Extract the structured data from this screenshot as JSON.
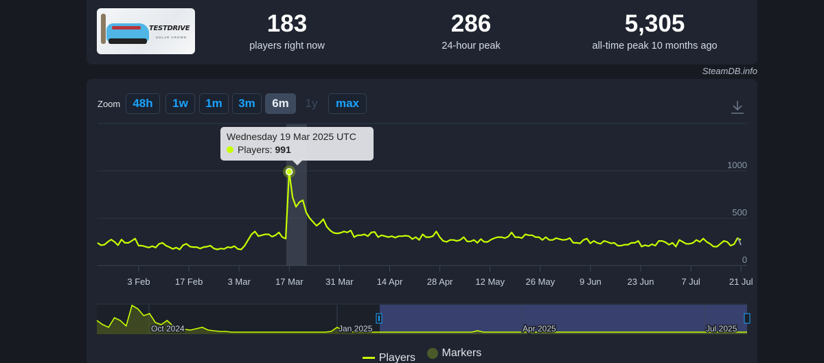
{
  "stats": {
    "logo_title": "TESTDRIVE",
    "logo_subtitle": "SOLAR CROWN",
    "current": {
      "value": "183",
      "label": "players right now"
    },
    "peak24": {
      "value": "286",
      "label": "24-hour peak"
    },
    "alltime": {
      "value": "5,305",
      "label": "all-time peak 10 months ago"
    }
  },
  "credit": "SteamDB.info",
  "zoom": {
    "label": "Zoom",
    "buttons": [
      {
        "label": "48h",
        "state": "normal"
      },
      {
        "label": "1w",
        "state": "normal"
      },
      {
        "label": "1m",
        "state": "normal"
      },
      {
        "label": "3m",
        "state": "normal"
      },
      {
        "label": "6m",
        "state": "active"
      },
      {
        "label": "1y",
        "state": "disabled"
      },
      {
        "label": "max",
        "state": "normal"
      }
    ]
  },
  "tooltip": {
    "date": "Wednesday 19 Mar 2025 UTC",
    "series": "Players: ",
    "value": "991"
  },
  "legend": {
    "players": "Players",
    "markers": "Markers"
  },
  "colors": {
    "line": "#c8ff00",
    "accent": "#1aa3ff",
    "navigator_selection": "#3a4272"
  },
  "navigator": {
    "labels": [
      "Oct 2024",
      "Jan 2025",
      "Apr 2025",
      "Jul 2025"
    ]
  },
  "chart_data": {
    "type": "line",
    "title": "",
    "xlabel": "",
    "ylabel": "Players",
    "ylim": [
      0,
      1500
    ],
    "yticks": [
      0,
      500,
      1000
    ],
    "xticks": [
      "3 Feb",
      "17 Feb",
      "3 Mar",
      "17 Mar",
      "31 Mar",
      "14 Apr",
      "28 Apr",
      "12 May",
      "26 May",
      "9 Jun",
      "23 Jun",
      "7 Jul",
      "21 Jul"
    ],
    "grid": true,
    "legend_position": "bottom",
    "series": [
      {
        "name": "Players",
        "x_start": "2025-01-22",
        "x_step_days": 1,
        "values": [
          240,
          215,
          220,
          250,
          275,
          250,
          215,
          275,
          240,
          240,
          260,
          285,
          210,
          210,
          200,
          190,
          205,
          190,
          230,
          240,
          210,
          195,
          175,
          190,
          170,
          215,
          230,
          200,
          195,
          195,
          180,
          195,
          200,
          210,
          180,
          170,
          180,
          175,
          195,
          190,
          205,
          175,
          170,
          210,
          270,
          330,
          360,
          310,
          320,
          330,
          330,
          305,
          320,
          350,
          300,
          285,
          991,
          720,
          620,
          670,
          690,
          560,
          500,
          460,
          420,
          450,
          490,
          410,
          370,
          345,
          340,
          345,
          360,
          350,
          370,
          300,
          320,
          320,
          330,
          310,
          350,
          355,
          300,
          320,
          310,
          300,
          310,
          295,
          310,
          310,
          315,
          310,
          280,
          300,
          270,
          330,
          300,
          300,
          310,
          360,
          300,
          260,
          250,
          270,
          270,
          260,
          270,
          300,
          255,
          255,
          270,
          240,
          280,
          250,
          250,
          275,
          290,
          300,
          300,
          290,
          305,
          350,
          300,
          300,
          290,
          330,
          320,
          320,
          300,
          300,
          270,
          300,
          270,
          270,
          290,
          280,
          270,
          275,
          290,
          240,
          240,
          235,
          270,
          285,
          235,
          260,
          240,
          230,
          260,
          250,
          235,
          240,
          210,
          210,
          220,
          220,
          240,
          240,
          260,
          200,
          215,
          205,
          225,
          210,
          260,
          260,
          245,
          220,
          240,
          200,
          270,
          250,
          230,
          230,
          240,
          270,
          250,
          285,
          250,
          230,
          200,
          200,
          230,
          260,
          250,
          210,
          225,
          290,
          270
        ],
        "peak": {
          "date": "Wednesday 19 Mar 2025",
          "value": 991
        }
      }
    ],
    "navigator": {
      "range": [
        "2024-08",
        "2025-07"
      ],
      "selected_range": [
        "2025-01-22",
        "2025-07-24"
      ],
      "labels": [
        "Oct 2024",
        "Jan 2025",
        "Apr 2025",
        "Jul 2025"
      ]
    }
  }
}
